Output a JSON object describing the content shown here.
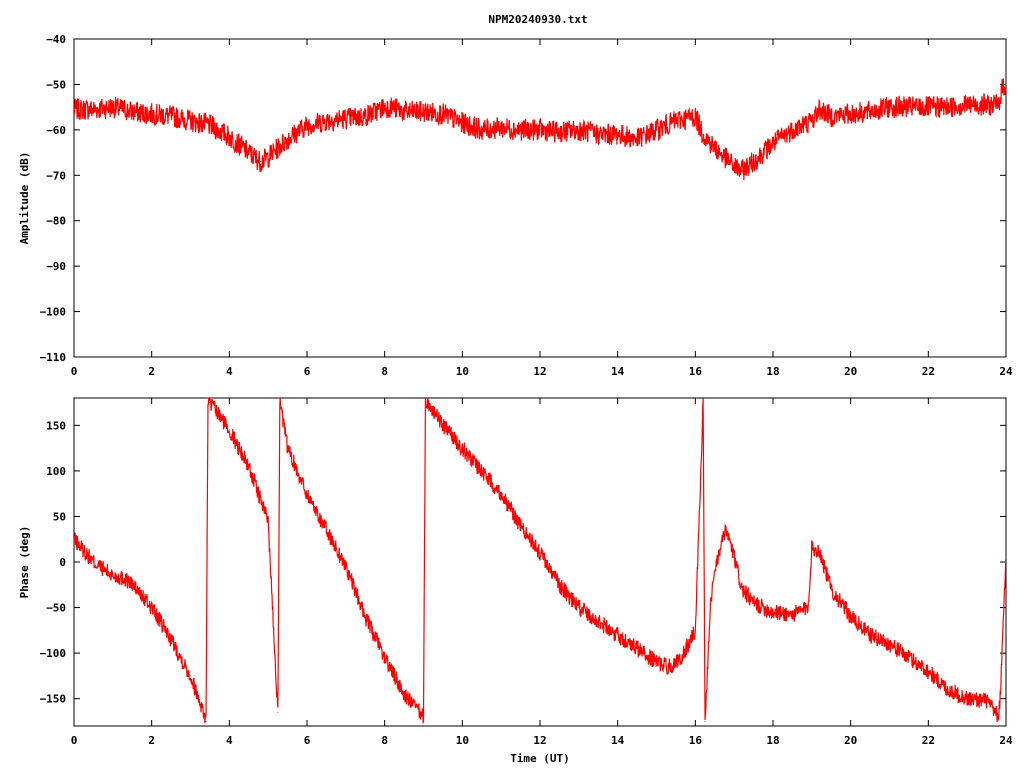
{
  "title": "NPM20240930.txt",
  "colors": {
    "series": "#ff0000",
    "axes": "#000000",
    "background": "#ffffff"
  },
  "chart_data": [
    {
      "type": "line",
      "title": "NPM20240930.txt",
      "xlabel": "",
      "ylabel": "Amplitude (dB)",
      "xlim": [
        0,
        24
      ],
      "ylim": [
        -110,
        -40
      ],
      "xticks": [
        0,
        2,
        4,
        6,
        8,
        10,
        12,
        14,
        16,
        18,
        20,
        22,
        24
      ],
      "xtick_labels": [
        "0",
        "2",
        "4",
        "6",
        "8",
        "10",
        "12",
        "14",
        "16",
        "18",
        "20",
        "22",
        "24"
      ],
      "yticks": [
        -40,
        -50,
        -60,
        -70,
        -80,
        -90,
        -100,
        -110
      ],
      "ytick_labels": [
        "−40",
        "−50",
        "−60",
        "−70",
        "−80",
        "−90",
        "−100",
        "−110"
      ],
      "grid": false,
      "series": [
        {
          "x": [
            0,
            0.5,
            1.0,
            1.5,
            2.0,
            2.5,
            3.0,
            3.5,
            4.0,
            4.5,
            4.8,
            5.0,
            5.5,
            6.0,
            6.5,
            7.0,
            7.5,
            8.0,
            8.2,
            8.5,
            9.0,
            9.5,
            10.0,
            10.5,
            11.0,
            11.5,
            12.0,
            12.5,
            13.0,
            13.5,
            14.0,
            14.5,
            15.0,
            15.5,
            16.0,
            16.2,
            16.5,
            17.0,
            17.2,
            17.5,
            18.0,
            18.5,
            19.0,
            19.2,
            19.5,
            20.0,
            20.5,
            21.0,
            21.5,
            22.0,
            22.5,
            23.0,
            23.5,
            23.8,
            23.9,
            24.0
          ],
          "y": [
            -55.5,
            -55.5,
            -55,
            -56,
            -56.5,
            -57,
            -58,
            -59,
            -61.5,
            -65,
            -67,
            -66,
            -62,
            -59,
            -58,
            -57.5,
            -57,
            -55,
            -55,
            -56,
            -56,
            -56.5,
            -58.5,
            -60,
            -59.5,
            -60,
            -60,
            -60.5,
            -60,
            -61,
            -61,
            -62,
            -60,
            -58,
            -57,
            -61,
            -64,
            -68,
            -69,
            -67,
            -63,
            -60,
            -58,
            -55.5,
            -57,
            -56.5,
            -56,
            -55,
            -55,
            -55,
            -55,
            -54.5,
            -54.5,
            -54.5,
            -51,
            -50
          ]
        }
      ]
    },
    {
      "type": "line",
      "title": "",
      "xlabel": "Time (UT)",
      "ylabel": "Phase (deg)",
      "xlim": [
        0,
        24
      ],
      "ylim": [
        -180,
        180
      ],
      "xticks": [
        0,
        2,
        4,
        6,
        8,
        10,
        12,
        14,
        16,
        18,
        20,
        22,
        24
      ],
      "xtick_labels": [
        "0",
        "2",
        "4",
        "6",
        "8",
        "10",
        "12",
        "14",
        "16",
        "18",
        "20",
        "22",
        "24"
      ],
      "yticks": [
        150,
        100,
        50,
        0,
        -50,
        -100,
        -150
      ],
      "ytick_labels": [
        "150",
        "100",
        "50",
        "0",
        "−50",
        "−100",
        "−150"
      ],
      "grid": false,
      "series": [
        {
          "x": [
            0,
            0.5,
            1.0,
            1.3,
            1.5,
            2.0,
            2.5,
            3.0,
            3.3,
            3.4,
            3.45,
            3.5,
            4.0,
            4.5,
            5.0,
            5.25,
            5.3,
            5.5,
            6.0,
            6.5,
            7.0,
            7.5,
            8.0,
            8.5,
            9.0,
            9.05,
            9.1,
            9.5,
            10.0,
            10.5,
            11.0,
            11.5,
            12.0,
            12.5,
            13.0,
            13.5,
            14.0,
            14.5,
            15.0,
            15.3,
            15.6,
            16.0,
            16.2,
            16.25,
            16.4,
            16.6,
            16.8,
            17.0,
            17.2,
            17.5,
            18.0,
            18.5,
            18.9,
            19.0,
            19.2,
            19.5,
            20.0,
            20.5,
            21.0,
            21.5,
            22.0,
            22.5,
            23.0,
            23.5,
            23.8,
            23.85,
            24.0
          ],
          "y": [
            25,
            0,
            -15,
            -18,
            -25,
            -50,
            -85,
            -125,
            -160,
            -175,
            180,
            175,
            145,
            105,
            45,
            -165,
            175,
            125,
            75,
            35,
            -5,
            -60,
            -105,
            -145,
            -170,
            178,
            175,
            150,
            125,
            100,
            75,
            40,
            10,
            -25,
            -50,
            -65,
            -80,
            -95,
            -110,
            -115,
            -108,
            -75,
            175,
            -175,
            -40,
            10,
            35,
            5,
            -30,
            -45,
            -55,
            -58,
            -50,
            15,
            12,
            -30,
            -60,
            -80,
            -90,
            -105,
            -120,
            -140,
            -150,
            -152,
            -170,
            -150,
            5
          ]
        }
      ]
    }
  ]
}
